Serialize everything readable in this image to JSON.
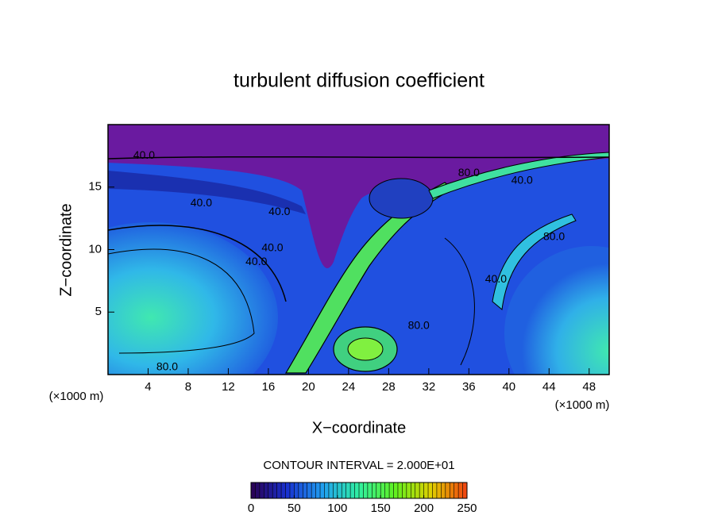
{
  "chart_data": {
    "type": "contour",
    "title": "turbulent diffusion coefficient",
    "xlabel": "X−coordinate",
    "ylabel": "Z−coordinate",
    "x_unit_left": "(×1000 m)",
    "x_unit_right": "(×1000 m)",
    "xlim": [
      0,
      50
    ],
    "xticks": [
      4,
      8,
      12,
      16,
      20,
      24,
      28,
      32,
      36,
      40,
      44,
      48
    ],
    "ylim": [
      0,
      20
    ],
    "yticks": [
      5,
      10,
      15
    ],
    "contour_interval": "CONTOUR INTERVAL = 2.000E+01",
    "contour_labels": [
      {
        "label": "40.0",
        "x": 3.6,
        "y": 17.5
      },
      {
        "label": "40.0",
        "x": 9.3,
        "y": 13.7
      },
      {
        "label": "40.0",
        "x": 17.1,
        "y": 13.0
      },
      {
        "label": "40.0",
        "x": 16.4,
        "y": 10.1
      },
      {
        "label": "40.0",
        "x": 14.8,
        "y": 9.0
      },
      {
        "label": "80.0",
        "x": 5.9,
        "y": 0.6
      },
      {
        "label": "80.0",
        "x": 36.0,
        "y": 16.1
      },
      {
        "label": "40.0",
        "x": 41.3,
        "y": 15.5
      },
      {
        "label": "80.0",
        "x": 44.5,
        "y": 11.0
      },
      {
        "label": "40.0",
        "x": 38.7,
        "y": 7.6
      },
      {
        "label": "80.0",
        "x": 31.0,
        "y": 3.9
      }
    ],
    "clim": [
      0,
      250
    ],
    "cticks": [
      0,
      50,
      100,
      150,
      200,
      250
    ],
    "colormap": [
      "#2a0050",
      "#1830d0",
      "#20a0f0",
      "#30f0a0",
      "#60f020",
      "#e0d000",
      "#f04010"
    ]
  }
}
